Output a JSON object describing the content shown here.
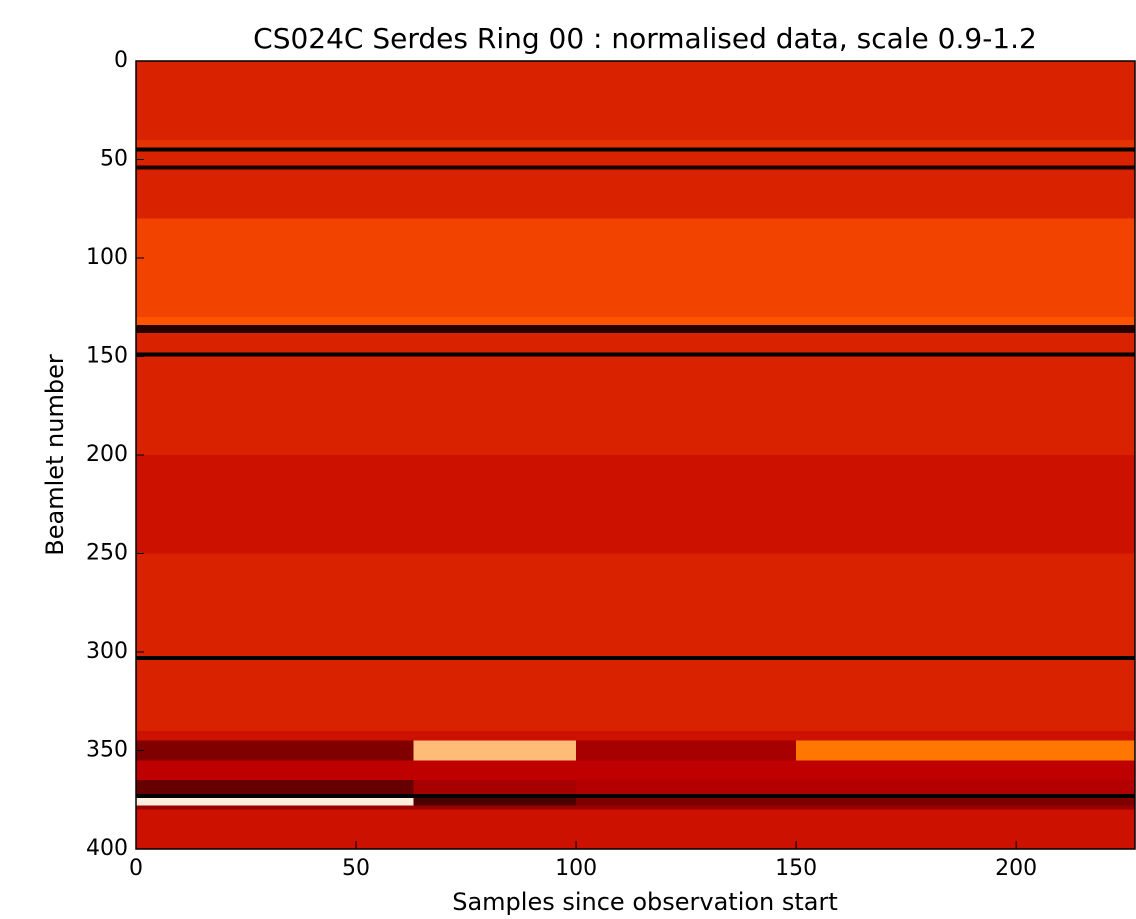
{
  "chart_data": {
    "type": "heatmap",
    "title": "CS024C Serdes Ring 00 : normalised data, scale 0.9-1.2",
    "x_label": "Samples since observation start",
    "y_label": "Beamlet number",
    "colormap": "gist_heat",
    "clim": [
      0.9,
      1.2
    ],
    "xedges": [
      0,
      63,
      100,
      150,
      227
    ],
    "yedges": [
      0,
      40,
      44,
      46,
      53,
      55,
      80,
      100,
      130,
      134,
      138,
      148,
      150,
      200,
      250,
      300,
      302,
      304,
      340,
      345,
      355,
      365,
      372,
      374,
      378,
      380,
      400
    ],
    "z": [
      [
        1.07,
        1.07,
        1.07,
        1.07
      ],
      [
        1.08,
        1.08,
        1.08,
        1.08
      ],
      [
        0.9,
        0.9,
        0.9,
        0.9
      ],
      [
        1.07,
        1.07,
        1.07,
        1.07
      ],
      [
        0.92,
        0.92,
        0.92,
        0.92
      ],
      [
        1.07,
        1.07,
        1.07,
        1.07
      ],
      [
        1.09,
        1.09,
        1.09,
        1.09
      ],
      [
        1.09,
        1.09,
        1.09,
        1.09
      ],
      [
        1.1,
        1.1,
        1.1,
        1.1
      ],
      [
        0.93,
        0.93,
        0.93,
        0.93
      ],
      [
        1.07,
        1.07,
        1.07,
        1.07
      ],
      [
        0.9,
        0.9,
        0.9,
        0.9
      ],
      [
        1.07,
        1.07,
        1.07,
        1.07
      ],
      [
        1.06,
        1.06,
        1.06,
        1.06
      ],
      [
        1.07,
        1.07,
        1.07,
        1.07
      ],
      [
        1.07,
        1.07,
        1.07,
        1.07
      ],
      [
        0.9,
        0.9,
        0.9,
        0.9
      ],
      [
        1.07,
        1.07,
        1.07,
        1.07
      ],
      [
        1.06,
        1.06,
        1.06,
        1.06
      ],
      [
        1.0,
        1.16,
        1.03,
        1.12
      ],
      [
        1.05,
        1.05,
        1.05,
        1.05
      ],
      [
        0.98,
        1.03,
        1.04,
        1.04
      ],
      [
        0.9,
        0.9,
        0.9,
        0.9
      ],
      [
        1.19,
        0.96,
        1.0,
        1.0
      ],
      [
        1.02,
        1.02,
        1.02,
        1.02
      ],
      [
        1.06,
        1.06,
        1.06,
        1.06
      ]
    ],
    "xlim": [
      0,
      227
    ],
    "ylim": [
      400,
      0
    ],
    "xticks": [
      0,
      50,
      100,
      150,
      200
    ],
    "yticks": [
      0,
      50,
      100,
      150,
      200,
      250,
      300,
      350,
      400
    ]
  }
}
